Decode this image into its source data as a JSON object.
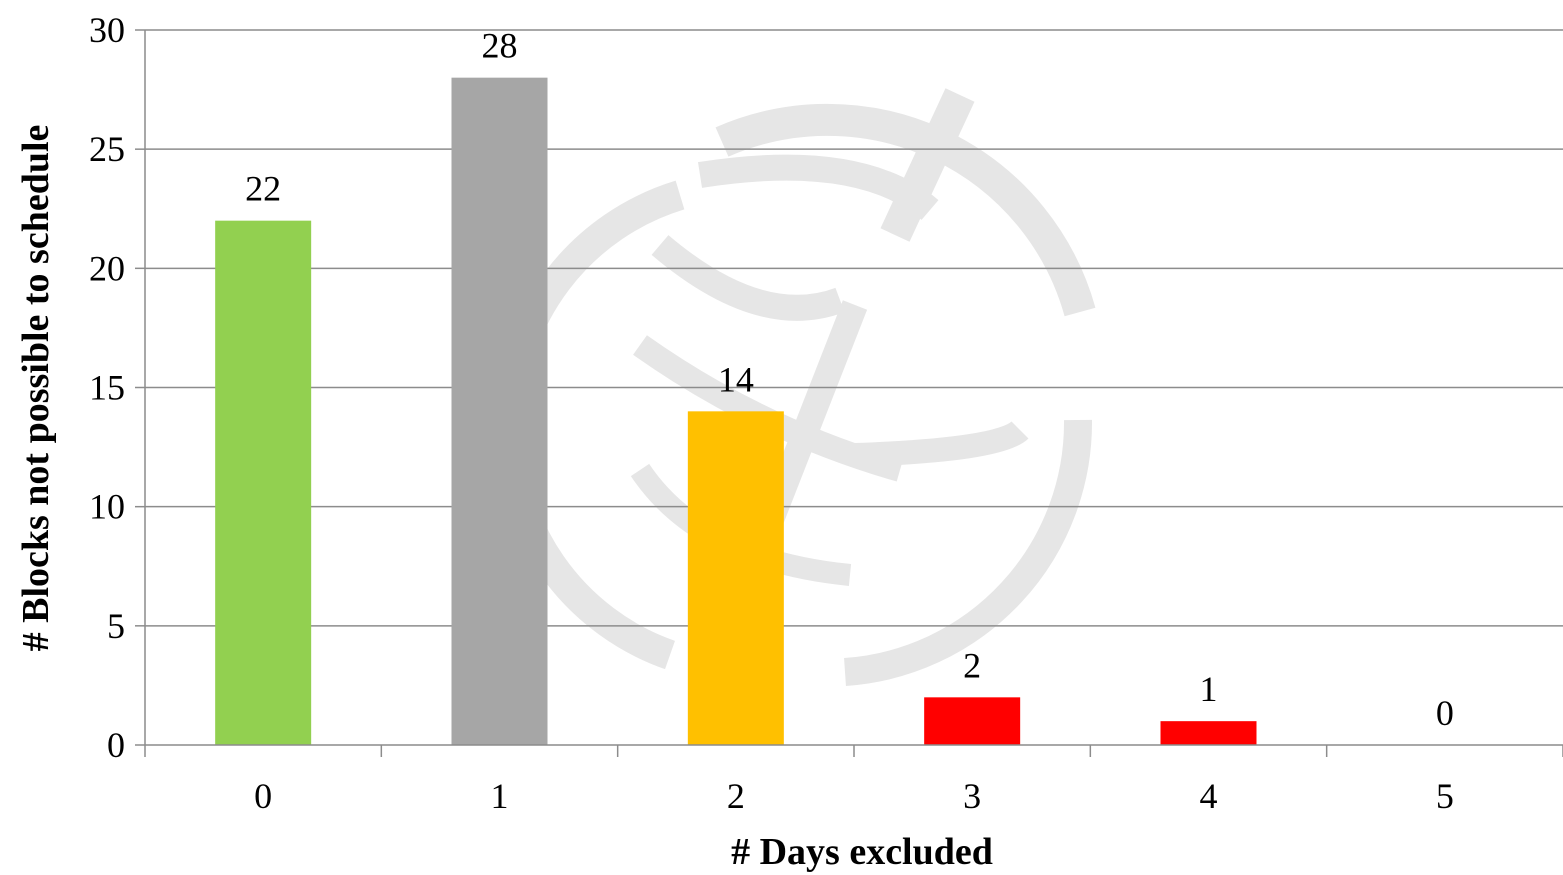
{
  "chart_data": {
    "type": "bar",
    "title": "",
    "xlabel": "# Days excluded",
    "ylabel": "# Blocks not possible to schedule",
    "categories": [
      "0",
      "1",
      "2",
      "3",
      "4",
      "5"
    ],
    "values": [
      22,
      28,
      14,
      2,
      1,
      0
    ],
    "data_labels": [
      "22",
      "28",
      "14",
      "2",
      "1",
      "0"
    ],
    "bar_colors": [
      "#92D050",
      "#A6A6A6",
      "#FFC000",
      "#FF0000",
      "#FF0000",
      "#FF0000"
    ],
    "ylim": [
      0,
      30
    ],
    "yticks": [
      0,
      5,
      10,
      15,
      20,
      25,
      30
    ],
    "ytick_labels": [
      "0",
      "5",
      "10",
      "15",
      "20",
      "25",
      "30"
    ],
    "grid": true,
    "legend": "none",
    "watermark_color": "#E6E6E6"
  }
}
